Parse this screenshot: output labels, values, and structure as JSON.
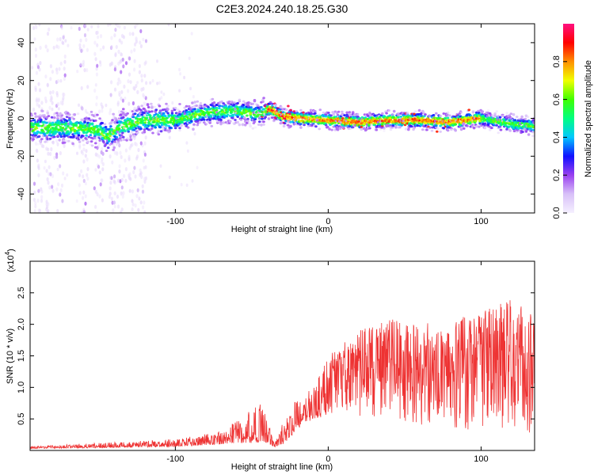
{
  "title": "C2E3.2024.240.18.25.G30",
  "chart_data": [
    {
      "type": "heatmap",
      "name": "spectrogram",
      "xlabel": "Height of straight line (km)",
      "ylabel": "Frequency (Hz)",
      "xlim": [
        -195,
        135
      ],
      "ylim": [
        -50,
        50
      ],
      "xticks": [
        -100,
        0,
        100
      ],
      "xtick_labels": [
        "-100",
        "0",
        "100"
      ],
      "yticks": [
        -40,
        -20,
        0,
        20,
        40
      ],
      "ytick_labels": [
        "-40",
        "-20",
        "0",
        "20",
        "40"
      ],
      "ridge": {
        "x": [
          -195,
          -170,
          -150,
          -145,
          -135,
          -120,
          -100,
          -80,
          -60,
          -45,
          -38,
          -30,
          -20,
          0,
          20,
          40,
          60,
          80,
          100,
          120,
          135
        ],
        "y": [
          -5,
          -5,
          -6,
          -10,
          -4,
          -1,
          -1,
          3,
          4,
          2,
          5,
          1,
          0,
          -1,
          -2,
          -1,
          -1,
          -2,
          0,
          -3,
          -4
        ]
      },
      "colorbar": {
        "label": "Normalized spectral amplitude",
        "range": [
          0,
          1
        ],
        "ticks": [
          0.0,
          0.2,
          0.4,
          0.6,
          0.8
        ],
        "tick_labels": [
          "0.0",
          "0.2",
          "0.4",
          "0.6",
          "0.8"
        ],
        "colors": [
          "#f5f0ff",
          "#d8c0f8",
          "#9a40f0",
          "#1010ff",
          "#00c8ff",
          "#00ff80",
          "#40ff00",
          "#f0ff00",
          "#ff9000",
          "#ff0000",
          "#ff1080"
        ]
      }
    },
    {
      "type": "line",
      "name": "snr",
      "color": "#ee3333",
      "xlabel": "Height of straight line (km)",
      "ylabel": "SNR (10 * v/v)",
      "y_multiplier": "(x10",
      "y_multiplier_exp": "4",
      "y_multiplier_close": ")",
      "xlim": [
        -195,
        135
      ],
      "ylim": [
        0,
        3.0
      ],
      "xticks": [
        -100,
        0,
        100
      ],
      "xtick_labels": [
        "-100",
        "0",
        "100"
      ],
      "yticks": [
        0.5,
        1.0,
        1.5,
        2.0,
        2.5
      ],
      "ytick_labels": [
        "0.5",
        "1.0",
        "1.5",
        "2.0",
        "2.5"
      ],
      "envelope": {
        "x": [
          -195,
          -150,
          -100,
          -70,
          -55,
          -45,
          -40,
          -35,
          -30,
          -25,
          -20,
          -10,
          0,
          10,
          20,
          40,
          60,
          80,
          100,
          120,
          135
        ],
        "base": [
          0.03,
          0.04,
          0.06,
          0.1,
          0.12,
          0.12,
          0.12,
          0.05,
          0.08,
          0.2,
          0.35,
          0.5,
          0.55,
          0.6,
          0.55,
          0.5,
          0.4,
          0.35,
          0.3,
          0.25,
          0.25
        ],
        "peak": [
          0.07,
          0.12,
          0.18,
          0.3,
          0.55,
          0.75,
          0.6,
          0.15,
          0.45,
          0.65,
          0.9,
          1.0,
          1.5,
          1.7,
          1.9,
          2.1,
          2.0,
          2.1,
          2.2,
          2.4,
          2.3
        ]
      }
    }
  ]
}
